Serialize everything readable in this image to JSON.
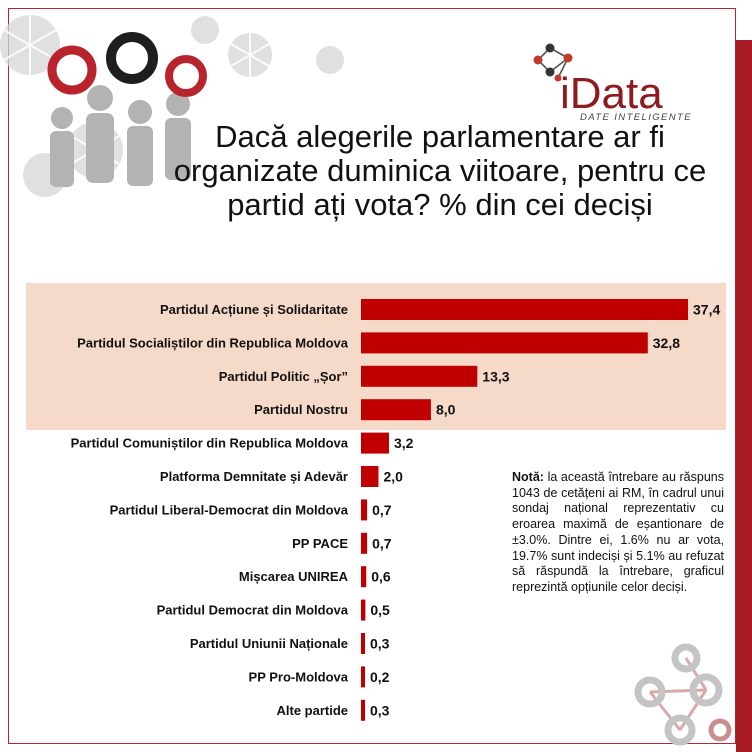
{
  "logo": {
    "brand": "iData",
    "tagline": "DATE INTELIGENTE"
  },
  "title": "Dacă alegerile parlamentare ar fi organizate duminica viitoare, pentru ce partid ați vota? % din cei deciși",
  "note": {
    "label": "Notă:",
    "text": "la această întrebare au răspuns 1043 de cetățeni ai RM, în cadrul unui sondaj național reprezentativ cu eroarea maximă de eșantionare de ±3.0%. Dintre ei, 1.6% nu ar vota, 19.7% sunt indeciși și 5.1% au refuzat să răspundă la întrebare, graficul reprezintă opțiunile celor deciși."
  },
  "colors": {
    "bar": "#c00000",
    "highlight": "#f5d9c9",
    "accent": "#a61c22"
  },
  "chart_data": {
    "type": "bar",
    "orientation": "horizontal",
    "title": "Dacă alegerile parlamentare ar fi organizate duminica viitoare, pentru ce partid ați vota? % din cei deciși",
    "categories": [
      "Partidul Acțiune și Solidaritate",
      "Partidul Socialiștilor din Republica Moldova",
      "Partidul Politic „Șor”",
      "Partidul Nostru",
      "Partidul Comuniștilor din Republica Moldova",
      "Platforma Demnitate și Adevăr",
      "Partidul Liberal-Democrat din Moldova",
      "PP PACE",
      "Mișcarea UNIREA",
      "Partidul Democrat din Moldova",
      "Partidul Uniunii Naționale",
      "PP Pro-Moldova",
      "Alte partide"
    ],
    "values": [
      37.4,
      32.8,
      13.3,
      8.0,
      3.2,
      2.0,
      0.7,
      0.7,
      0.6,
      0.5,
      0.3,
      0.2,
      0.3
    ],
    "value_labels": [
      "37,4",
      "32,8",
      "13,3",
      "8,0",
      "3,2",
      "2,0",
      "0,7",
      "0,7",
      "0,6",
      "0,5",
      "0,3",
      "0,2",
      "0,3"
    ],
    "highlighted_count": 4,
    "xlim": [
      0,
      37.4
    ],
    "grid": false,
    "legend": "none"
  }
}
